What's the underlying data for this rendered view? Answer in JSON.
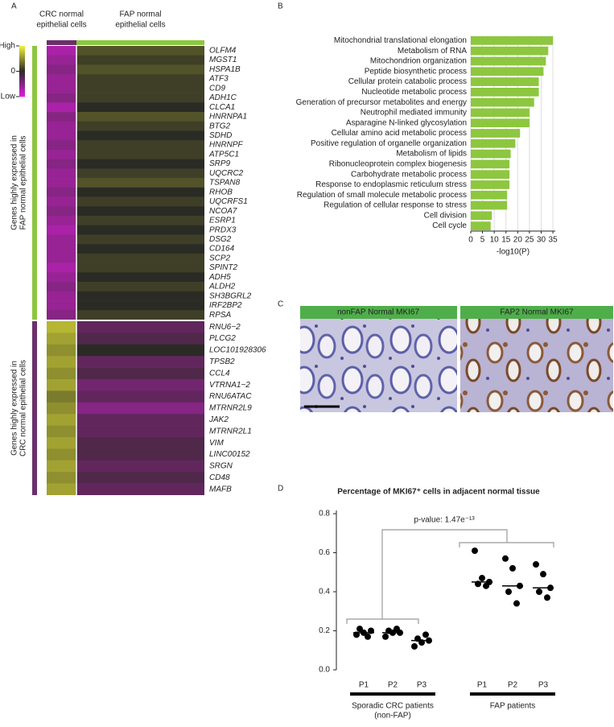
{
  "panel_labels": [
    "A",
    "B",
    "C",
    "D"
  ],
  "chart_data": [
    {
      "type": "heatmap",
      "columns": [
        {
          "label": [
            "CRC normal",
            "epithelial cells"
          ],
          "color": "#6b2f6b"
        },
        {
          "label": [
            "FAP normal",
            "epithelial cells"
          ],
          "color": "#8dc63f"
        }
      ],
      "clim": [
        -1,
        1
      ],
      "cticks": [
        {
          "value": 1,
          "label": "High"
        },
        0,
        {
          "value": -1,
          "label": "Low"
        }
      ],
      "colormap": [
        "#e01ee0",
        "#2b2b25",
        "#f2f23a"
      ],
      "highlight_color": "#e3201b",
      "row_groups": [
        {
          "label": [
            "Genes highly expressed in",
            "FAP normal epithelial cells"
          ],
          "color": "#8dc63f",
          "highlight_indices": [
            0,
            3
          ],
          "genes": [
            "OLFM4",
            "MGST1",
            "HSPA1B",
            "ATF3",
            "CD9",
            "ADH1C",
            "CLCA1",
            "HNRNPA1",
            "BTG2",
            "SDHD",
            "HNRNPF",
            "ATP5C1",
            "SRP9",
            "UQCRC2",
            "TSPAN8",
            "RHOB",
            "UQCRFS1",
            "NCOA7",
            "ESRP1",
            "PRDX3",
            "DSG2",
            "CD164",
            "SCP2",
            "SPINT2",
            "ADH5",
            "ALDH2",
            "SH3BGRL2",
            "IRF2BP2",
            "RPSA"
          ],
          "values": [
            [
              -0.7,
              0.2
            ],
            [
              -0.6,
              0.1
            ],
            [
              -0.5,
              0.2
            ],
            [
              -0.6,
              0.1
            ],
            [
              -0.6,
              0.1
            ],
            [
              -0.5,
              0.1
            ],
            [
              -0.7,
              0.0
            ],
            [
              -0.5,
              0.2
            ],
            [
              -0.6,
              0.1
            ],
            [
              -0.6,
              0.0
            ],
            [
              -0.5,
              0.1
            ],
            [
              -0.6,
              0.1
            ],
            [
              -0.5,
              0.0
            ],
            [
              -0.6,
              0.1
            ],
            [
              -0.6,
              0.2
            ],
            [
              -0.5,
              0.0
            ],
            [
              -0.6,
              0.1
            ],
            [
              -0.5,
              0.0
            ],
            [
              -0.6,
              0.1
            ],
            [
              -0.7,
              0.0
            ],
            [
              -0.6,
              0.1
            ],
            [
              -0.6,
              0.0
            ],
            [
              -0.6,
              0.1
            ],
            [
              -0.7,
              0.1
            ],
            [
              -0.6,
              0.0
            ],
            [
              -0.5,
              0.1
            ],
            [
              -0.6,
              0.0
            ],
            [
              -0.6,
              0.0
            ],
            [
              -0.5,
              0.1
            ]
          ]
        },
        {
          "label": [
            "Genes highly expressed in",
            "CRC normal epithelial cells"
          ],
          "color": "#6b2f6b",
          "highlight_indices": [],
          "genes": [
            "RNU6−2",
            "PLCG2",
            "LOC101928306",
            "TPSB2",
            "CCL4",
            "VTRNA1−2",
            "RNU6ATAC",
            "MTRNR2L9",
            "JAK2",
            "MTRNR2L1",
            "VIM",
            "LINC00152",
            "SRGN",
            "CD48",
            "MAFB"
          ],
          "values": [
            [
              0.7,
              -0.3
            ],
            [
              0.6,
              -0.2
            ],
            [
              0.5,
              0.0
            ],
            [
              0.6,
              -0.3
            ],
            [
              0.5,
              -0.2
            ],
            [
              0.6,
              -0.4
            ],
            [
              0.4,
              -0.3
            ],
            [
              0.5,
              -0.5
            ],
            [
              0.6,
              -0.3
            ],
            [
              0.5,
              -0.3
            ],
            [
              0.6,
              -0.2
            ],
            [
              0.5,
              -0.2
            ],
            [
              0.6,
              -0.3
            ],
            [
              0.5,
              -0.2
            ],
            [
              0.6,
              -0.3
            ]
          ]
        }
      ]
    },
    {
      "type": "bar",
      "orientation": "horizontal",
      "color": "#8dc63f",
      "highlight_color": "#e3201b",
      "highlight_indices": [
        0,
        3,
        5,
        6,
        9,
        11,
        13,
        15,
        17,
        18
      ],
      "categories": [
        "Mitochondrial translational elongation",
        "Metabolism of RNA",
        "Mitochondrion organization",
        "Peptide biosynthetic process",
        "Cellular protein catabolic process",
        "Nucleotide metabolic process",
        "Generation of precursor metabolites and energy",
        "Neutrophil mediated immunity",
        "Asparagine N-linked glycosylation",
        "Cellular amino acid metabolic process",
        "Positive regulation of organelle organization",
        "Metabolism of lipids",
        "Ribonucleoprotein complex biogenesis",
        "Carbohydrate metabolic process",
        "Response to endoplasmic reticulum stress",
        "Regulation of small molecule metabolic process",
        "Regulation of cellular response to stress",
        "Cell division",
        "Cell cycle"
      ],
      "values": [
        35,
        33,
        32,
        31,
        29,
        29,
        27,
        25,
        25,
        21,
        19,
        17,
        16.5,
        16.5,
        16.5,
        15.5,
        15.5,
        9,
        8.5
      ],
      "xlabel": "-log10(P)",
      "xlim": [
        0,
        36
      ],
      "xticks": [
        0,
        5,
        10,
        15,
        20,
        25,
        30,
        35
      ],
      "grid": true
    },
    {
      "type": "dotplot",
      "title": "Percentage of MKI67⁺ cells in adjacent normal tissue",
      "annotation": "p-value: 1.47e⁻¹³",
      "categories": [
        "P1",
        "P2",
        "P3",
        "P1",
        "P2",
        "P3"
      ],
      "values": [
        [
          0.18,
          0.19,
          0.2,
          0.21,
          0.17
        ],
        [
          0.17,
          0.19,
          0.19,
          0.2,
          0.21
        ],
        [
          0.12,
          0.14,
          0.15,
          0.16,
          0.18
        ],
        [
          0.61,
          0.47,
          0.45,
          0.44,
          0.43
        ],
        [
          0.57,
          0.52,
          0.43,
          0.4,
          0.34
        ],
        [
          0.54,
          0.49,
          0.42,
          0.4,
          0.37
        ]
      ],
      "medians": [
        0.19,
        0.19,
        0.15,
        0.45,
        0.43,
        0.42
      ],
      "groups": [
        [
          "Sporadic CRC patients",
          "(non-FAP)"
        ],
        [
          "FAP patients"
        ]
      ],
      "ylim": [
        0,
        0.8
      ],
      "yticks": [
        {
          "value": 0,
          "label": "0.0"
        },
        {
          "value": 0.2,
          "label": "0.2"
        },
        {
          "value": 0.4,
          "label": "0.4"
        },
        {
          "value": 0.6,
          "label": "0.6"
        },
        {
          "value": 0.8,
          "label": "0.8"
        }
      ],
      "color": "#000000"
    }
  ],
  "images": {
    "titles": [
      "nonFAP Normal MKI67",
      "FAP2 Normal MKI67"
    ]
  }
}
